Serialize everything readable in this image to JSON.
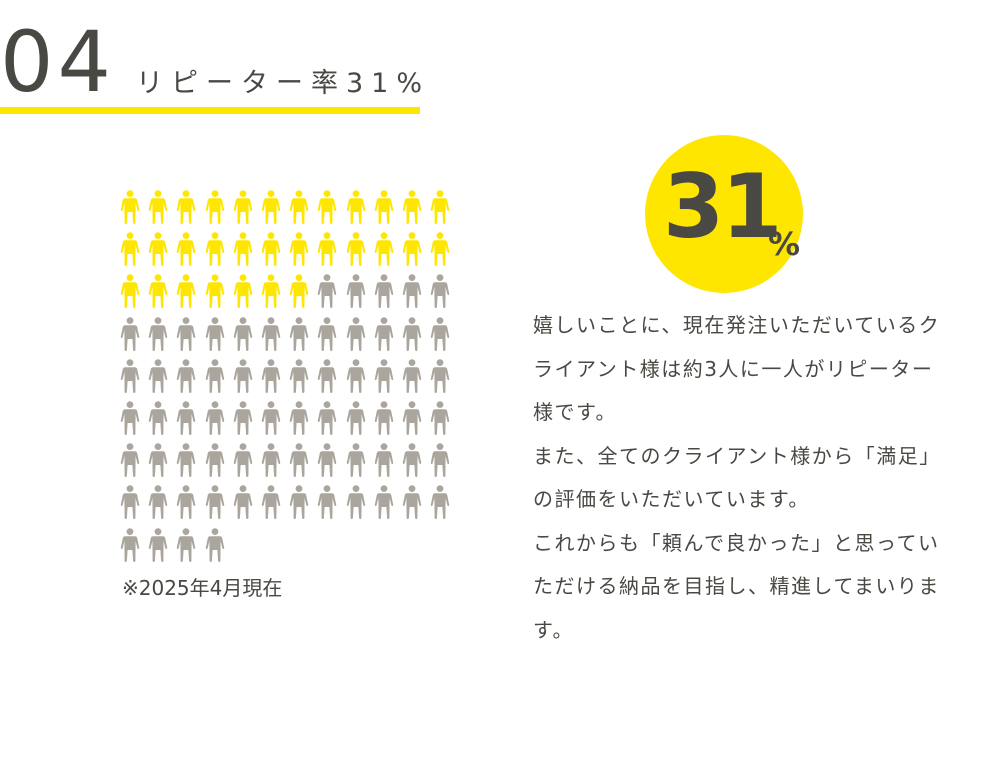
{
  "header": {
    "number": "04",
    "title": "リピーター率31%"
  },
  "figure": {
    "total_icons": 100,
    "highlighted_icons": 31,
    "columns": 12,
    "highlight_color": "#ffe600",
    "base_color": "#aaa69e",
    "icon": "person-icon"
  },
  "note": "※2025年4月現在",
  "stat": {
    "value": "31",
    "unit": "%",
    "circle_color": "#ffe600"
  },
  "body": {
    "paragraphs": [
      "嬉しいことに、現在発注いただいているクライアント様は約3人に一人がリピーター様です。",
      "また、全てのクライアント様から「満足」の評価をいただいています。",
      "これからも「頼んで良かった」と思っていただける納品を目指し、精進してまいります。"
    ]
  }
}
